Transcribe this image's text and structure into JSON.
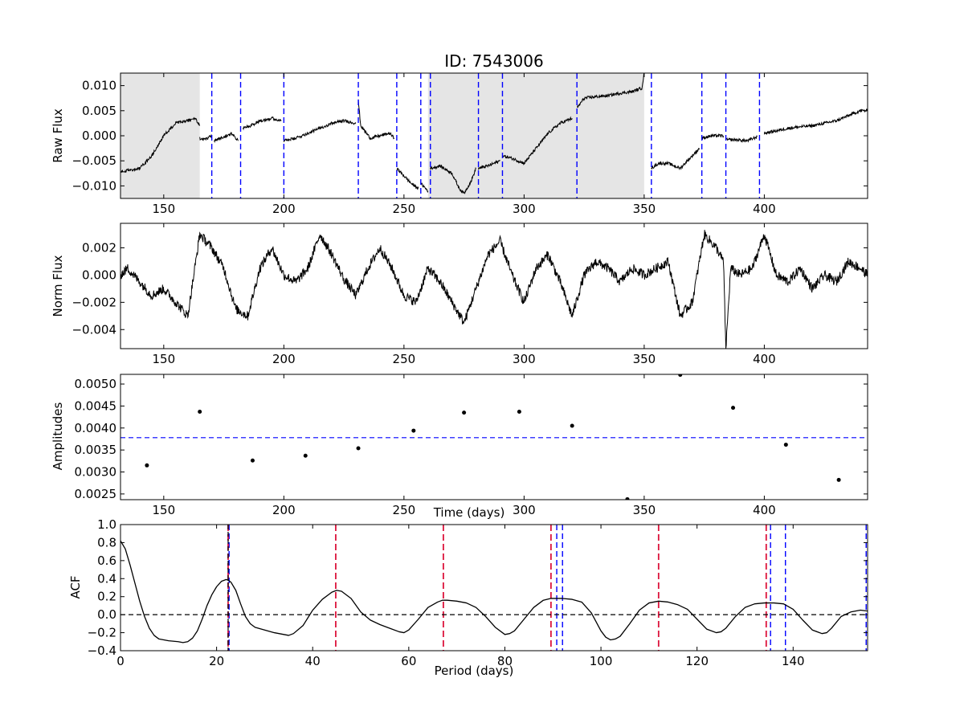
{
  "title": "ID: 7543006",
  "colors": {
    "line": "#000000",
    "blue_dash": "#0000ff",
    "red_dash": "#dc143c",
    "shade": "#e5e5e5",
    "black_dash": "#000000"
  },
  "chart_data": [
    {
      "type": "line",
      "panel": "raw",
      "ylabel": "Raw Flux",
      "xlim": [
        132,
        443
      ],
      "ylim": [
        -0.0125,
        0.0125
      ],
      "xticks": [
        150,
        200,
        250,
        300,
        350,
        400
      ],
      "yticks": [
        -0.01,
        -0.005,
        0.0,
        0.005,
        0.01
      ],
      "ytick_labels": [
        "−0.010",
        "−0.005",
        "0.000",
        "0.005",
        "0.010"
      ],
      "shaded_spans": [
        [
          132,
          165
        ],
        [
          260,
          350
        ]
      ],
      "vlines_blue_dashed": [
        170,
        182,
        200,
        231,
        247,
        257,
        261,
        281,
        291,
        322,
        353,
        374,
        384,
        398
      ],
      "segments": [
        {
          "x": [
            132,
            140,
            145,
            150,
            155,
            160,
            163,
            165
          ],
          "y": [
            -0.0072,
            -0.0065,
            -0.004,
            0.0,
            0.0025,
            0.003,
            0.0035,
            0.002
          ]
        },
        {
          "x": [
            165,
            166,
            168,
            170
          ],
          "y": [
            -0.0005,
            -0.0008,
            -0.0005,
            0.0
          ]
        },
        {
          "x": [
            171,
            175,
            178,
            181
          ],
          "y": [
            -0.001,
            -0.0002,
            0.0005,
            -0.001
          ]
        },
        {
          "x": [
            183,
            186,
            190,
            195,
            199
          ],
          "y": [
            0.0015,
            0.002,
            0.003,
            0.0035,
            0.003
          ]
        },
        {
          "x": [
            200,
            205,
            210,
            215,
            220,
            225,
            230
          ],
          "y": [
            -0.001,
            -0.0005,
            0.0005,
            0.0015,
            0.0025,
            0.003,
            0.0025
          ]
        },
        {
          "x": [
            231,
            232,
            236,
            240,
            244,
            246
          ],
          "y": [
            0.007,
            0.002,
            -0.0005,
            0.0,
            0.0005,
            -0.0005
          ]
        },
        {
          "x": [
            247,
            250,
            253,
            256
          ],
          "y": [
            -0.0065,
            -0.008,
            -0.0095,
            -0.0105
          ]
        },
        {
          "x": [
            257,
            259,
            260
          ],
          "y": [
            -0.0095,
            -0.0105,
            -0.011
          ]
        },
        {
          "x": [
            261,
            265,
            270,
            273,
            275,
            278,
            280
          ],
          "y": [
            -0.0065,
            -0.006,
            -0.0075,
            -0.0105,
            -0.0115,
            -0.009,
            -0.0065
          ]
        },
        {
          "x": [
            281,
            285,
            290
          ],
          "y": [
            -0.0065,
            -0.006,
            -0.005
          ]
        },
        {
          "x": [
            291,
            295,
            300,
            305,
            310,
            315,
            320
          ],
          "y": [
            -0.004,
            -0.0045,
            -0.0055,
            -0.0025,
            0.0005,
            0.0025,
            0.0035
          ]
        },
        {
          "x": [
            322,
            325,
            330,
            335,
            340,
            345,
            349,
            350
          ],
          "y": [
            0.0055,
            0.0075,
            0.0078,
            0.008,
            0.0085,
            0.0088,
            0.0095,
            0.0125
          ]
        },
        {
          "x": [
            353,
            356,
            360,
            365,
            370,
            373
          ],
          "y": [
            -0.0065,
            -0.0055,
            -0.0055,
            -0.0065,
            -0.004,
            -0.0025
          ]
        },
        {
          "x": [
            374,
            378,
            383
          ],
          "y": [
            -0.0005,
            0.0,
            0.0
          ]
        },
        {
          "x": [
            384,
            388,
            393,
            397
          ],
          "y": [
            -0.0008,
            -0.0008,
            -0.001,
            -0.0002
          ]
        },
        {
          "x": [
            400,
            405,
            410,
            415,
            420,
            425,
            430,
            435,
            440,
            443
          ],
          "y": [
            0.0005,
            0.001,
            0.0015,
            0.0018,
            0.002,
            0.0025,
            0.003,
            0.004,
            0.005,
            0.005
          ]
        }
      ]
    },
    {
      "type": "line",
      "panel": "norm",
      "ylabel": "Norm Flux",
      "xlim": [
        132,
        443
      ],
      "ylim": [
        -0.0054,
        0.0038
      ],
      "xticks": [
        150,
        200,
        250,
        300,
        350,
        400
      ],
      "yticks": [
        -0.004,
        -0.002,
        0.0,
        0.002
      ],
      "ytick_labels": [
        "−0.004",
        "−0.002",
        "0.000",
        "0.002"
      ],
      "x": [
        132,
        135,
        140,
        145,
        150,
        155,
        160,
        165,
        170,
        175,
        180,
        185,
        190,
        195,
        200,
        205,
        210,
        215,
        220,
        225,
        230,
        235,
        240,
        245,
        250,
        255,
        260,
        265,
        270,
        275,
        280,
        285,
        290,
        295,
        300,
        305,
        310,
        315,
        320,
        325,
        330,
        335,
        340,
        345,
        350,
        355,
        360,
        365,
        370,
        375,
        380,
        383,
        384,
        386,
        390,
        395,
        400,
        405,
        410,
        415,
        420,
        425,
        430,
        435,
        440,
        443
      ],
      "y": [
        0.0,
        0.0005,
        -0.0005,
        -0.0015,
        -0.001,
        -0.002,
        -0.003,
        0.003,
        0.002,
        0.0005,
        -0.0025,
        -0.003,
        0.0005,
        0.002,
        0.0,
        -0.0005,
        0.0005,
        0.003,
        0.0015,
        -0.0003,
        -0.0015,
        0.0005,
        0.002,
        0.0005,
        -0.0015,
        -0.002,
        0.0005,
        -0.0005,
        -0.002,
        -0.0035,
        -0.001,
        0.0015,
        0.0025,
        0.0,
        -0.002,
        0.0005,
        0.0015,
        -0.0005,
        -0.003,
        0.0,
        0.001,
        0.0005,
        -0.0005,
        0.0005,
        0.0,
        0.0005,
        0.001,
        -0.003,
        -0.002,
        0.003,
        0.002,
        0.001,
        -0.0054,
        0.0005,
        0.0,
        0.0005,
        0.003,
        0.0,
        -0.0005,
        0.0005,
        -0.001,
        0.0,
        -0.0005,
        0.001,
        0.0005,
        0.0
      ]
    },
    {
      "type": "scatter",
      "panel": "amplitudes",
      "ylabel": "Amplitudes",
      "xlabel": "Time (days)",
      "xlim": [
        132,
        443
      ],
      "ylim": [
        0.00237,
        0.00522
      ],
      "xticks": [
        150,
        200,
        250,
        300,
        350,
        400
      ],
      "yticks": [
        0.0025,
        0.003,
        0.0035,
        0.004,
        0.0045,
        0.005
      ],
      "ytick_labels": [
        "0.0025",
        "0.0030",
        "0.0035",
        "0.0040",
        "0.0045",
        "0.0050"
      ],
      "hline_blue_dashed": 0.00378,
      "x": [
        143,
        165,
        187,
        209,
        231,
        254,
        275,
        298,
        320,
        343,
        365,
        387,
        409,
        431
      ],
      "y": [
        0.00315,
        0.00437,
        0.00326,
        0.00337,
        0.00354,
        0.00394,
        0.00435,
        0.00437,
        0.00405,
        0.00238,
        0.00521,
        0.00446,
        0.00362,
        0.00282
      ]
    },
    {
      "type": "line",
      "panel": "acf",
      "ylabel": "ACF",
      "xlabel": "Period (days)",
      "xlim": [
        0,
        155.5
      ],
      "ylim": [
        -0.4,
        1.0
      ],
      "xticks": [
        0,
        20,
        40,
        60,
        80,
        100,
        120,
        140
      ],
      "yticks": [
        -0.4,
        -0.2,
        0.0,
        0.2,
        0.4,
        0.6,
        0.8,
        1.0
      ],
      "ytick_labels": [
        "−0.4",
        "−0.2",
        "0.0",
        "0.2",
        "0.4",
        "0.6",
        "0.8",
        "1.0"
      ],
      "hline_black_dashed": 0.0,
      "vlines_red_dashed": [
        22.4,
        44.8,
        67.2,
        89.6,
        112.0,
        134.4
      ],
      "vlines_blue_dashed": [
        22.6,
        90.8,
        92.0,
        135.3,
        138.4,
        155.2
      ],
      "vline_black_dashed": 22.4,
      "x": [
        0,
        1,
        2,
        3,
        4,
        5,
        6,
        7,
        8,
        9,
        10,
        12,
        13,
        14,
        15,
        16,
        17,
        18,
        19,
        20,
        21,
        22,
        22.5,
        23,
        24,
        25,
        26,
        27,
        28,
        30,
        32,
        34,
        35,
        36,
        38,
        40,
        42,
        44,
        45,
        46,
        48,
        50,
        52,
        54,
        56,
        58,
        59,
        60,
        62,
        64,
        66,
        67,
        68,
        70,
        72,
        74,
        76,
        78,
        80,
        81,
        82,
        84,
        86,
        88,
        89.5,
        90,
        92,
        94,
        96,
        98,
        100,
        101,
        102,
        103,
        104,
        106,
        108,
        110,
        112,
        114,
        116,
        118,
        120,
        122,
        124,
        125,
        126,
        128,
        130,
        132,
        134,
        136,
        138,
        140,
        142,
        144,
        146,
        147,
        148,
        150,
        152,
        154,
        155.5
      ],
      "y": [
        0.82,
        0.73,
        0.55,
        0.35,
        0.15,
        -0.02,
        -0.15,
        -0.23,
        -0.27,
        -0.28,
        -0.29,
        -0.3,
        -0.31,
        -0.3,
        -0.26,
        -0.18,
        -0.05,
        0.1,
        0.22,
        0.31,
        0.37,
        0.39,
        0.38,
        0.36,
        0.27,
        0.12,
        -0.02,
        -0.1,
        -0.14,
        -0.17,
        -0.2,
        -0.22,
        -0.23,
        -0.21,
        -0.12,
        0.05,
        0.17,
        0.25,
        0.27,
        0.26,
        0.18,
        0.03,
        -0.06,
        -0.11,
        -0.15,
        -0.19,
        -0.2,
        -0.17,
        -0.05,
        0.08,
        0.14,
        0.16,
        0.16,
        0.15,
        0.13,
        0.08,
        -0.02,
        -0.14,
        -0.22,
        -0.21,
        -0.18,
        -0.05,
        0.08,
        0.16,
        0.18,
        0.18,
        0.18,
        0.17,
        0.14,
        0.02,
        -0.18,
        -0.25,
        -0.28,
        -0.27,
        -0.24,
        -0.1,
        0.05,
        0.13,
        0.15,
        0.14,
        0.11,
        0.06,
        -0.05,
        -0.16,
        -0.2,
        -0.19,
        -0.15,
        -0.02,
        0.08,
        0.12,
        0.13,
        0.13,
        0.12,
        0.06,
        -0.06,
        -0.17,
        -0.21,
        -0.2,
        -0.15,
        -0.02,
        0.03,
        0.05,
        0.04
      ]
    }
  ]
}
